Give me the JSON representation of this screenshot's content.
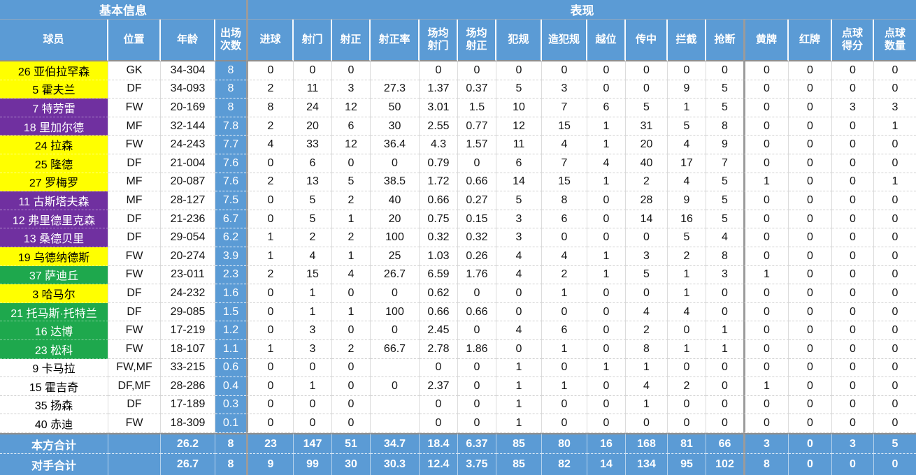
{
  "colors": {
    "header_blue": "#5B9BD5",
    "row_yellow": "#FFFF00",
    "row_purple": "#7030A0",
    "row_green": "#1EA84D",
    "section_divider_gray": "#9B9B9B"
  },
  "table": {
    "group_headers": [
      {
        "label": "基本信息",
        "colspan": 4
      },
      {
        "label": "表现",
        "colspan": 16
      }
    ],
    "columns": [
      "球员",
      "位置",
      "年龄",
      "出场\n次数",
      "进球",
      "射门",
      "射正",
      "射正率",
      "场均\n射门",
      "场均\n射正",
      "犯规",
      "造犯规",
      "越位",
      "传中",
      "拦截",
      "抢断",
      "黄牌",
      "红牌",
      "点球\n得分",
      "点球\n数量"
    ],
    "rows": [
      {
        "player": "26 亚伯拉罕森",
        "color": "yellow",
        "values": [
          "GK",
          "34-304",
          "8",
          "0",
          "0",
          "0",
          "",
          "0",
          "0",
          "0",
          "0",
          "0",
          "0",
          "0",
          "0",
          "0",
          "0",
          "0",
          "0"
        ]
      },
      {
        "player": "5 霍夫兰",
        "color": "yellow",
        "values": [
          "DF",
          "34-093",
          "8",
          "2",
          "11",
          "3",
          "27.3",
          "1.37",
          "0.37",
          "5",
          "3",
          "0",
          "0",
          "9",
          "5",
          "0",
          "0",
          "0",
          "0"
        ]
      },
      {
        "player": "7 特劳雷",
        "color": "purple",
        "values": [
          "FW",
          "20-169",
          "8",
          "8",
          "24",
          "12",
          "50",
          "3.01",
          "1.5",
          "10",
          "7",
          "6",
          "5",
          "1",
          "5",
          "0",
          "0",
          "3",
          "3"
        ]
      },
      {
        "player": "18 里加尔德",
        "color": "purple",
        "values": [
          "MF",
          "32-144",
          "7.8",
          "2",
          "20",
          "6",
          "30",
          "2.55",
          "0.77",
          "12",
          "15",
          "1",
          "31",
          "5",
          "8",
          "0",
          "0",
          "0",
          "1"
        ]
      },
      {
        "player": "24 拉森",
        "color": "yellow",
        "values": [
          "FW",
          "24-243",
          "7.7",
          "4",
          "33",
          "12",
          "36.4",
          "4.3",
          "1.57",
          "11",
          "4",
          "1",
          "20",
          "4",
          "9",
          "0",
          "0",
          "0",
          "0"
        ]
      },
      {
        "player": "25 隆德",
        "color": "yellow",
        "values": [
          "DF",
          "21-004",
          "7.6",
          "0",
          "6",
          "0",
          "0",
          "0.79",
          "0",
          "6",
          "7",
          "4",
          "40",
          "17",
          "7",
          "0",
          "0",
          "0",
          "0"
        ]
      },
      {
        "player": "27 罗梅罗",
        "color": "yellow",
        "values": [
          "MF",
          "20-087",
          "7.6",
          "2",
          "13",
          "5",
          "38.5",
          "1.72",
          "0.66",
          "14",
          "15",
          "1",
          "2",
          "4",
          "5",
          "1",
          "0",
          "0",
          "1"
        ]
      },
      {
        "player": "11 古斯塔夫森",
        "color": "purple",
        "values": [
          "MF",
          "28-127",
          "7.5",
          "0",
          "5",
          "2",
          "40",
          "0.66",
          "0.27",
          "5",
          "8",
          "0",
          "28",
          "9",
          "5",
          "0",
          "0",
          "0",
          "0"
        ]
      },
      {
        "player": "12 弗里德里克森",
        "color": "purple",
        "values": [
          "DF",
          "21-236",
          "6.7",
          "0",
          "5",
          "1",
          "20",
          "0.75",
          "0.15",
          "3",
          "6",
          "0",
          "14",
          "16",
          "5",
          "0",
          "0",
          "0",
          "0"
        ]
      },
      {
        "player": "13 桑德贝里",
        "color": "purple",
        "values": [
          "DF",
          "29-054",
          "6.2",
          "1",
          "2",
          "2",
          "100",
          "0.32",
          "0.32",
          "3",
          "0",
          "0",
          "0",
          "5",
          "4",
          "0",
          "0",
          "0",
          "0"
        ]
      },
      {
        "player": "19 乌德纳德斯",
        "color": "yellow",
        "values": [
          "FW",
          "20-274",
          "3.9",
          "1",
          "4",
          "1",
          "25",
          "1.03",
          "0.26",
          "4",
          "4",
          "1",
          "3",
          "2",
          "8",
          "0",
          "0",
          "0",
          "0"
        ]
      },
      {
        "player": "37 萨迪丘",
        "color": "green",
        "values": [
          "FW",
          "23-011",
          "2.3",
          "2",
          "15",
          "4",
          "26.7",
          "6.59",
          "1.76",
          "4",
          "2",
          "1",
          "5",
          "1",
          "3",
          "1",
          "0",
          "0",
          "0"
        ]
      },
      {
        "player": "3 哈马尔",
        "color": "yellow",
        "values": [
          "DF",
          "24-232",
          "1.6",
          "0",
          "1",
          "0",
          "0",
          "0.62",
          "0",
          "0",
          "1",
          "0",
          "0",
          "1",
          "0",
          "0",
          "0",
          "0",
          "0"
        ]
      },
      {
        "player": "21 托马斯·托特兰",
        "color": "green",
        "values": [
          "DF",
          "29-085",
          "1.5",
          "0",
          "1",
          "1",
          "100",
          "0.66",
          "0.66",
          "0",
          "0",
          "0",
          "4",
          "4",
          "0",
          "0",
          "0",
          "0",
          "0"
        ]
      },
      {
        "player": "16 达博",
        "color": "green",
        "values": [
          "FW",
          "17-219",
          "1.2",
          "0",
          "3",
          "0",
          "0",
          "2.45",
          "0",
          "4",
          "6",
          "0",
          "2",
          "0",
          "1",
          "0",
          "0",
          "0",
          "0"
        ]
      },
      {
        "player": "23 松科",
        "color": "green",
        "values": [
          "FW",
          "18-107",
          "1.1",
          "1",
          "3",
          "2",
          "66.7",
          "2.78",
          "1.86",
          "0",
          "1",
          "0",
          "8",
          "1",
          "1",
          "0",
          "0",
          "0",
          "0"
        ]
      },
      {
        "player": "9 卡马拉",
        "color": "white",
        "values": [
          "FW,MF",
          "33-215",
          "0.6",
          "0",
          "0",
          "0",
          "",
          "0",
          "0",
          "1",
          "0",
          "1",
          "1",
          "0",
          "0",
          "0",
          "0",
          "0",
          "0"
        ]
      },
      {
        "player": "15 霍吉奇",
        "color": "white",
        "values": [
          "DF,MF",
          "28-286",
          "0.4",
          "0",
          "1",
          "0",
          "0",
          "2.37",
          "0",
          "1",
          "1",
          "0",
          "4",
          "2",
          "0",
          "1",
          "0",
          "0",
          "0"
        ]
      },
      {
        "player": "35 扬森",
        "color": "white",
        "values": [
          "DF",
          "17-189",
          "0.3",
          "0",
          "0",
          "0",
          "",
          "0",
          "0",
          "1",
          "0",
          "0",
          "1",
          "0",
          "0",
          "0",
          "0",
          "0",
          "0"
        ]
      },
      {
        "player": "40 赤迪",
        "color": "white",
        "values": [
          "FW",
          "18-309",
          "0.1",
          "0",
          "0",
          "0",
          "",
          "0",
          "0",
          "1",
          "0",
          "0",
          "0",
          "0",
          "0",
          "0",
          "0",
          "0",
          "0"
        ]
      }
    ],
    "totals": [
      {
        "label": "本方合计",
        "values": [
          "",
          "26.2",
          "8",
          "23",
          "147",
          "51",
          "34.7",
          "18.4",
          "6.37",
          "85",
          "80",
          "16",
          "168",
          "81",
          "66",
          "3",
          "0",
          "3",
          "5"
        ]
      },
      {
        "label": "对手合计",
        "values": [
          "",
          "26.7",
          "8",
          "9",
          "99",
          "30",
          "30.3",
          "12.4",
          "3.75",
          "85",
          "82",
          "14",
          "134",
          "95",
          "102",
          "8",
          "0",
          "0",
          "0"
        ]
      }
    ]
  }
}
